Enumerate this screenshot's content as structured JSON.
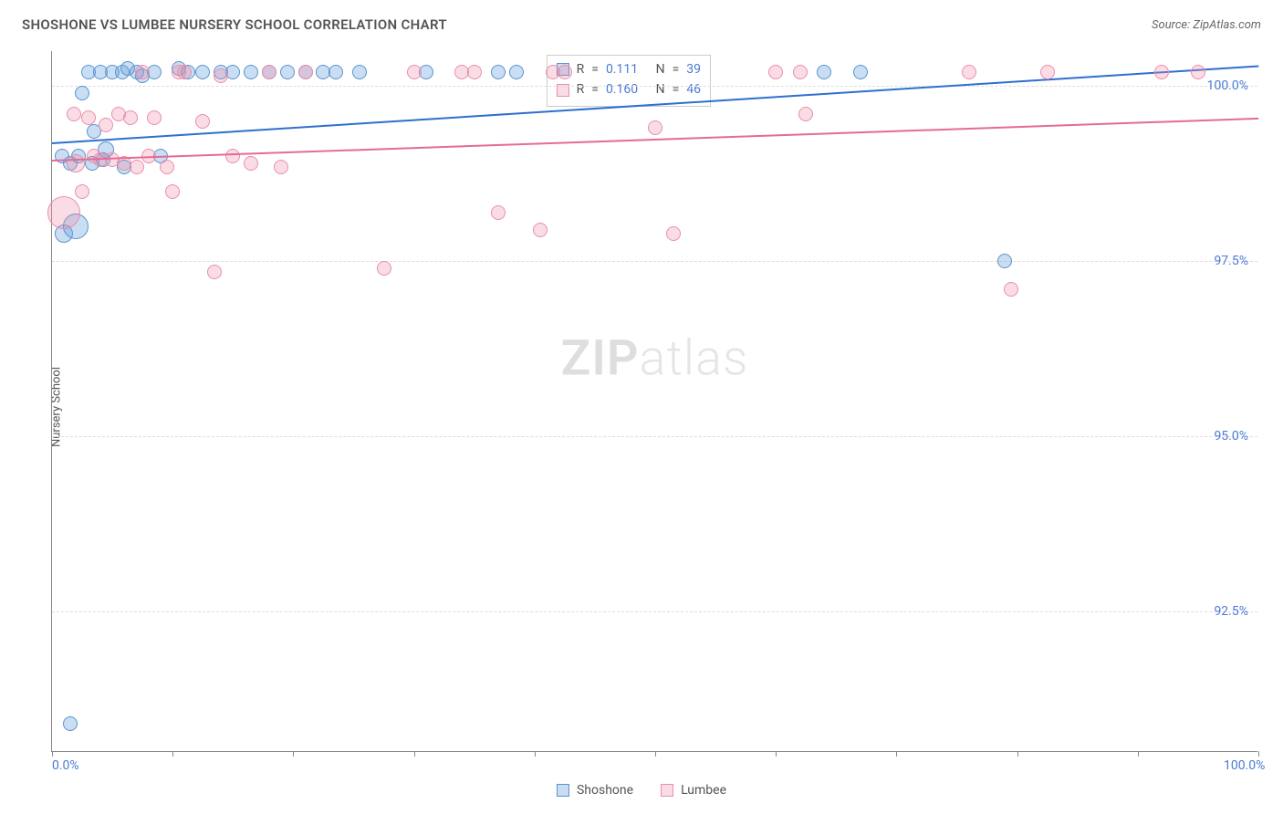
{
  "title": "SHOSHONE VS LUMBEE NURSERY SCHOOL CORRELATION CHART",
  "source": "Source: ZipAtlas.com",
  "y_axis_label": "Nursery School",
  "watermark_bold": "ZIP",
  "watermark_light": "atlas",
  "chart": {
    "type": "scatter",
    "background_color": "#ffffff",
    "grid_color": "#dddddd",
    "axis_color": "#888888",
    "text_color": "#555555",
    "value_color": "#4b7bd6",
    "xlim": [
      0,
      100
    ],
    "ylim": [
      90.5,
      100.5
    ],
    "x_tick_positions": [
      0,
      10,
      20,
      30,
      40,
      50,
      60,
      70,
      80,
      90,
      100
    ],
    "x_tick_labels": {
      "0": "0.0%",
      "100": "100.0%"
    },
    "y_gridlines": [
      92.5,
      95.0,
      97.5,
      100.0
    ],
    "y_tick_labels": {
      "92.5": "92.5%",
      "95.0": "95.0%",
      "97.5": "97.5%",
      "100.0": "100.0%"
    },
    "series": [
      {
        "name": "Shoshone",
        "fill": "rgba(99,160,220,0.35)",
        "stroke": "#5a93cf",
        "trend_color": "#2f6fd0",
        "r_value": "0.111",
        "n_value": "39",
        "trend": {
          "x1": 0,
          "y1": 99.2,
          "x2": 100,
          "y2": 100.3
        },
        "points": [
          {
            "x": 1.5,
            "y": 90.9,
            "r": 8
          },
          {
            "x": 1.0,
            "y": 97.9,
            "r": 10
          },
          {
            "x": 2.0,
            "y": 98.0,
            "r": 14
          },
          {
            "x": 2.5,
            "y": 99.9,
            "r": 8
          },
          {
            "x": 3.0,
            "y": 100.2,
            "r": 8
          },
          {
            "x": 3.5,
            "y": 99.35,
            "r": 8
          },
          {
            "x": 4.0,
            "y": 100.2,
            "r": 8
          },
          {
            "x": 4.5,
            "y": 99.1,
            "r": 9
          },
          {
            "x": 5.0,
            "y": 100.2,
            "r": 8
          },
          {
            "x": 5.8,
            "y": 100.2,
            "r": 8
          },
          {
            "x": 6.3,
            "y": 100.25,
            "r": 8
          },
          {
            "x": 7.0,
            "y": 100.2,
            "r": 8
          },
          {
            "x": 7.5,
            "y": 100.15,
            "r": 8
          },
          {
            "x": 8.5,
            "y": 100.2,
            "r": 8
          },
          {
            "x": 9.0,
            "y": 99.0,
            "r": 8
          },
          {
            "x": 10.5,
            "y": 100.25,
            "r": 8
          },
          {
            "x": 11.3,
            "y": 100.2,
            "r": 8
          },
          {
            "x": 12.5,
            "y": 100.2,
            "r": 8
          },
          {
            "x": 14.0,
            "y": 100.2,
            "r": 8
          },
          {
            "x": 15.0,
            "y": 100.2,
            "r": 8
          },
          {
            "x": 16.5,
            "y": 100.2,
            "r": 8
          },
          {
            "x": 18.0,
            "y": 100.2,
            "r": 8
          },
          {
            "x": 19.5,
            "y": 100.2,
            "r": 8
          },
          {
            "x": 21.0,
            "y": 100.2,
            "r": 8
          },
          {
            "x": 22.5,
            "y": 100.2,
            "r": 8
          },
          {
            "x": 23.5,
            "y": 100.2,
            "r": 8
          },
          {
            "x": 25.5,
            "y": 100.2,
            "r": 8
          },
          {
            "x": 31.0,
            "y": 100.2,
            "r": 8
          },
          {
            "x": 37.0,
            "y": 100.2,
            "r": 8
          },
          {
            "x": 38.5,
            "y": 100.2,
            "r": 8
          },
          {
            "x": 64.0,
            "y": 100.2,
            "r": 8
          },
          {
            "x": 67.0,
            "y": 100.2,
            "r": 8
          },
          {
            "x": 79.0,
            "y": 97.5,
            "r": 8
          },
          {
            "x": 2.2,
            "y": 99.0,
            "r": 8
          },
          {
            "x": 3.3,
            "y": 98.9,
            "r": 8
          },
          {
            "x": 6.0,
            "y": 98.85,
            "r": 8
          },
          {
            "x": 1.5,
            "y": 98.9,
            "r": 8
          },
          {
            "x": 0.8,
            "y": 99.0,
            "r": 8
          },
          {
            "x": 4.2,
            "y": 98.95,
            "r": 8
          }
        ]
      },
      {
        "name": "Lumbee",
        "fill": "rgba(240,140,170,0.3)",
        "stroke": "#e98fab",
        "trend_color": "#e56b95",
        "r_value": "0.160",
        "n_value": "46",
        "trend": {
          "x1": 0,
          "y1": 98.95,
          "x2": 100,
          "y2": 99.55
        },
        "points": [
          {
            "x": 1.0,
            "y": 98.2,
            "r": 18
          },
          {
            "x": 2.0,
            "y": 98.9,
            "r": 10
          },
          {
            "x": 3.5,
            "y": 99.0,
            "r": 8
          },
          {
            "x": 4.5,
            "y": 99.45,
            "r": 8
          },
          {
            "x": 5.0,
            "y": 98.95,
            "r": 8
          },
          {
            "x": 6.0,
            "y": 98.9,
            "r": 8
          },
          {
            "x": 7.0,
            "y": 98.85,
            "r": 8
          },
          {
            "x": 7.5,
            "y": 100.2,
            "r": 8
          },
          {
            "x": 8.5,
            "y": 99.55,
            "r": 8
          },
          {
            "x": 9.5,
            "y": 98.85,
            "r": 8
          },
          {
            "x": 10.0,
            "y": 98.5,
            "r": 8
          },
          {
            "x": 10.5,
            "y": 100.2,
            "r": 8
          },
          {
            "x": 11.0,
            "y": 100.2,
            "r": 8
          },
          {
            "x": 12.5,
            "y": 99.5,
            "r": 8
          },
          {
            "x": 13.5,
            "y": 97.35,
            "r": 8
          },
          {
            "x": 14.0,
            "y": 100.15,
            "r": 8
          },
          {
            "x": 15.0,
            "y": 99.0,
            "r": 8
          },
          {
            "x": 16.5,
            "y": 98.9,
            "r": 8
          },
          {
            "x": 18.0,
            "y": 100.2,
            "r": 8
          },
          {
            "x": 19.0,
            "y": 98.85,
            "r": 8
          },
          {
            "x": 21.0,
            "y": 100.2,
            "r": 8
          },
          {
            "x": 27.5,
            "y": 97.4,
            "r": 8
          },
          {
            "x": 30.0,
            "y": 100.2,
            "r": 8
          },
          {
            "x": 34.0,
            "y": 100.2,
            "r": 8
          },
          {
            "x": 35.0,
            "y": 100.2,
            "r": 8
          },
          {
            "x": 37.0,
            "y": 98.2,
            "r": 8
          },
          {
            "x": 40.5,
            "y": 97.95,
            "r": 8
          },
          {
            "x": 41.5,
            "y": 100.2,
            "r": 8
          },
          {
            "x": 42.5,
            "y": 100.2,
            "r": 8
          },
          {
            "x": 50.0,
            "y": 99.4,
            "r": 8
          },
          {
            "x": 51.5,
            "y": 97.9,
            "r": 8
          },
          {
            "x": 60.0,
            "y": 100.2,
            "r": 8
          },
          {
            "x": 62.0,
            "y": 100.2,
            "r": 8
          },
          {
            "x": 62.5,
            "y": 99.6,
            "r": 8
          },
          {
            "x": 76.0,
            "y": 100.2,
            "r": 8
          },
          {
            "x": 79.5,
            "y": 97.1,
            "r": 8
          },
          {
            "x": 82.5,
            "y": 100.2,
            "r": 8
          },
          {
            "x": 92.0,
            "y": 100.2,
            "r": 8
          },
          {
            "x": 95.0,
            "y": 100.2,
            "r": 8
          },
          {
            "x": 3.0,
            "y": 99.55,
            "r": 8
          },
          {
            "x": 1.8,
            "y": 99.6,
            "r": 8
          },
          {
            "x": 5.5,
            "y": 99.6,
            "r": 8
          },
          {
            "x": 2.5,
            "y": 98.5,
            "r": 8
          },
          {
            "x": 4.0,
            "y": 98.95,
            "r": 8
          },
          {
            "x": 6.5,
            "y": 99.55,
            "r": 8
          },
          {
            "x": 8.0,
            "y": 99.0,
            "r": 8
          }
        ]
      }
    ]
  },
  "legend": {
    "items": [
      {
        "label": "Shoshone",
        "fill": "rgba(99,160,220,0.35)",
        "stroke": "#5a93cf"
      },
      {
        "label": "Lumbee",
        "fill": "rgba(240,140,170,0.3)",
        "stroke": "#e98fab"
      }
    ]
  },
  "stats_box": {
    "r_label": "R",
    "n_label": "N",
    "eq": "="
  }
}
